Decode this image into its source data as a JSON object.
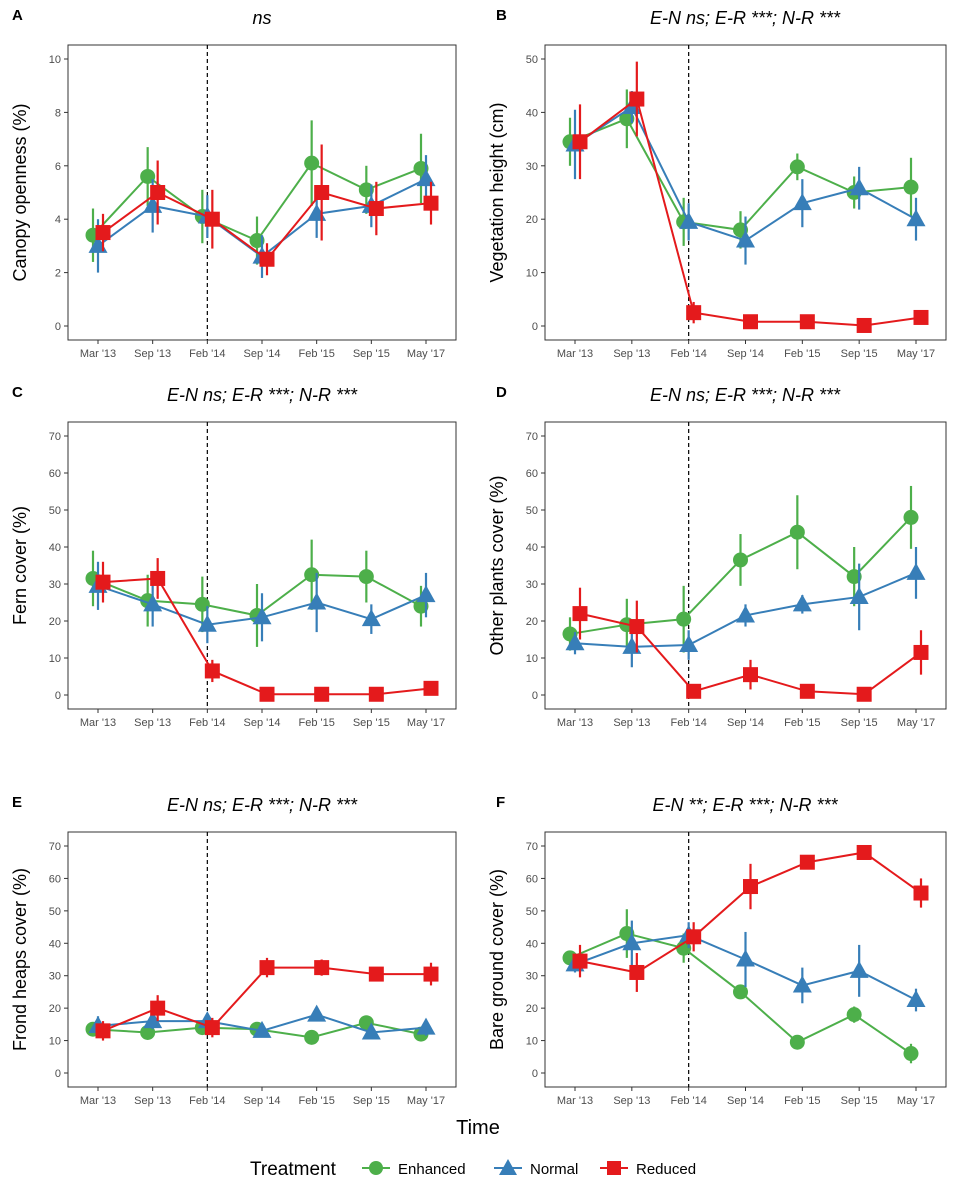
{
  "chart_data": [
    {
      "panel": "A",
      "type": "line",
      "title": "ns",
      "ylabel": "Canopy openness (%)",
      "ylim": [
        0,
        10
      ],
      "yticks": [
        0,
        2,
        4,
        6,
        8,
        10
      ],
      "categories": [
        "Mar '13",
        "Sep '13",
        "Feb '14",
        "Sep '14",
        "Feb '15",
        "Sep '15",
        "May '17"
      ],
      "series": [
        {
          "name": "Enhanced",
          "values": [
            3.4,
            5.6,
            4.1,
            3.2,
            6.1,
            5.1,
            5.9
          ],
          "err": [
            1.0,
            1.1,
            1.0,
            0.9,
            1.6,
            0.9,
            1.3
          ]
        },
        {
          "name": "Normal",
          "values": [
            3.0,
            4.5,
            4.1,
            2.6,
            4.2,
            4.5,
            5.5
          ],
          "err": [
            1.0,
            1.0,
            0.8,
            0.8,
            0.9,
            0.8,
            0.9
          ]
        },
        {
          "name": "Reduced",
          "values": [
            3.5,
            5.0,
            4.0,
            2.5,
            5.0,
            4.4,
            4.6
          ],
          "err": [
            0.7,
            1.2,
            1.1,
            0.6,
            1.8,
            1.0,
            0.8
          ]
        }
      ]
    },
    {
      "panel": "B",
      "type": "line",
      "title": "E-N ns; E-R ***; N-R ***",
      "ylabel": "Vegetation height (cm)",
      "ylim": [
        0,
        50
      ],
      "yticks": [
        0,
        10,
        20,
        30,
        40,
        50
      ],
      "categories": [
        "Mar '13",
        "Sep '13",
        "Feb '14",
        "Sep '14",
        "Feb '15",
        "Sep '15",
        "May '17"
      ],
      "series": [
        {
          "name": "Enhanced",
          "values": [
            34.5,
            38.8,
            19.5,
            18.0,
            29.8,
            25.0,
            26.0
          ],
          "err": [
            4.5,
            5.5,
            4.5,
            3.5,
            2.5,
            3.0,
            5.5
          ]
        },
        {
          "name": "Normal",
          "values": [
            34.0,
            41.0,
            19.5,
            16.0,
            23.0,
            25.8,
            20.0
          ],
          "err": [
            6.5,
            3.0,
            3.5,
            4.5,
            4.5,
            4.0,
            4.0
          ]
        },
        {
          "name": "Reduced",
          "values": [
            34.5,
            42.5,
            2.5,
            0.8,
            0.8,
            0.1,
            1.6
          ],
          "err": [
            7.0,
            7.0,
            2.0,
            0.7,
            0.6,
            0.3,
            1.0
          ]
        }
      ]
    },
    {
      "panel": "C",
      "type": "line",
      "title": "E-N ns; E-R ***; N-R ***",
      "ylabel": "Fern cover (%)",
      "ylim": [
        0,
        70
      ],
      "yticks": [
        0,
        10,
        20,
        30,
        40,
        50,
        60,
        70
      ],
      "categories": [
        "Mar '13",
        "Sep '13",
        "Feb '14",
        "Sep '14",
        "Feb '15",
        "Sep '15",
        "May '17"
      ],
      "series": [
        {
          "name": "Enhanced",
          "values": [
            31.5,
            25.5,
            24.5,
            21.5,
            32.5,
            32.0,
            24.0
          ],
          "err": [
            7.5,
            7.0,
            7.5,
            8.5,
            9.5,
            7.0,
            5.5
          ]
        },
        {
          "name": "Normal",
          "values": [
            29.5,
            24.5,
            19.0,
            21.0,
            25.0,
            20.5,
            27.0
          ],
          "err": [
            6.5,
            6.0,
            5.0,
            6.5,
            8.0,
            4.0,
            6.0
          ]
        },
        {
          "name": "Reduced",
          "values": [
            30.5,
            31.5,
            6.5,
            0.2,
            0.2,
            0.2,
            1.8
          ],
          "err": [
            5.5,
            5.5,
            3.0,
            0.5,
            0.5,
            0.5,
            1.0
          ]
        }
      ]
    },
    {
      "panel": "D",
      "type": "line",
      "title": "E-N ns; E-R ***; N-R ***",
      "ylabel": "Other plants cover (%)",
      "ylim": [
        0,
        70
      ],
      "yticks": [
        0,
        10,
        20,
        30,
        40,
        50,
        60,
        70
      ],
      "categories": [
        "Mar '13",
        "Sep '13",
        "Feb '14",
        "Sep '14",
        "Feb '15",
        "Sep '15",
        "May '17"
      ],
      "series": [
        {
          "name": "Enhanced",
          "values": [
            16.5,
            19.0,
            20.5,
            36.5,
            44.0,
            32.0,
            48.0
          ],
          "err": [
            4.5,
            7.0,
            9.0,
            7.0,
            10.0,
            8.0,
            8.5
          ]
        },
        {
          "name": "Normal",
          "values": [
            14.0,
            13.0,
            13.5,
            21.5,
            24.5,
            26.5,
            33.0
          ],
          "err": [
            3.0,
            5.5,
            4.0,
            3.0,
            2.5,
            9.0,
            7.0
          ]
        },
        {
          "name": "Reduced",
          "values": [
            22.0,
            18.5,
            1.0,
            5.5,
            1.0,
            0.2,
            11.5
          ],
          "err": [
            7.0,
            7.0,
            1.0,
            4.0,
            1.0,
            0.5,
            6.0
          ]
        }
      ]
    },
    {
      "panel": "E",
      "type": "line",
      "title": "E-N ns; E-R ***; N-R ***",
      "ylabel": "Frond heaps cover (%)",
      "ylim": [
        0,
        70
      ],
      "yticks": [
        0,
        10,
        20,
        30,
        40,
        50,
        60,
        70
      ],
      "categories": [
        "Mar '13",
        "Sep '13",
        "Feb '14",
        "Sep '14",
        "Feb '15",
        "Sep '15",
        "May '17"
      ],
      "series": [
        {
          "name": "Enhanced",
          "values": [
            13.5,
            12.5,
            14.0,
            13.5,
            11.0,
            15.5,
            12.0
          ],
          "err": [
            2.0,
            2.0,
            2.0,
            1.5,
            1.0,
            1.0,
            1.5
          ]
        },
        {
          "name": "Normal",
          "values": [
            14.5,
            16.0,
            16.0,
            13.0,
            18.0,
            12.5,
            14.0
          ],
          "err": [
            3.0,
            2.5,
            2.5,
            2.0,
            2.0,
            1.5,
            2.5
          ]
        },
        {
          "name": "Reduced",
          "values": [
            13.0,
            20.0,
            14.0,
            32.5,
            32.5,
            30.5,
            30.5
          ],
          "err": [
            3.0,
            4.0,
            3.0,
            3.0,
            2.5,
            1.5,
            3.5
          ]
        }
      ]
    },
    {
      "panel": "F",
      "type": "line",
      "title": "E-N **; E-R ***; N-R ***",
      "ylabel": "Bare ground cover (%)",
      "ylim": [
        0,
        70
      ],
      "yticks": [
        0,
        10,
        20,
        30,
        40,
        50,
        60,
        70
      ],
      "categories": [
        "Mar '13",
        "Sep '13",
        "Feb '14",
        "Sep '14",
        "Feb '15",
        "Sep '15",
        "May '17"
      ],
      "series": [
        {
          "name": "Enhanced",
          "values": [
            35.5,
            43.0,
            38.5,
            25.0,
            9.5,
            18.0,
            6.0
          ],
          "err": [
            2.0,
            7.5,
            4.5,
            1.5,
            1.0,
            2.5,
            3.0
          ]
        },
        {
          "name": "Normal",
          "values": [
            33.5,
            40.0,
            42.5,
            35.0,
            27.0,
            31.5,
            22.5
          ],
          "err": [
            2.5,
            7.0,
            4.0,
            8.5,
            5.5,
            8.0,
            3.5
          ]
        },
        {
          "name": "Reduced",
          "values": [
            34.5,
            31.0,
            42.0,
            57.5,
            65.0,
            68.0,
            55.5
          ],
          "err": [
            5.0,
            6.0,
            4.5,
            7.0,
            2.0,
            1.5,
            4.5
          ]
        }
      ]
    }
  ],
  "x_axis_title": "Time",
  "legend": {
    "title": "Treatment",
    "items": [
      {
        "name": "Enhanced",
        "shape": "circle",
        "color": "#4daf4a"
      },
      {
        "name": "Normal",
        "shape": "triangle",
        "color": "#377eb8"
      },
      {
        "name": "Reduced",
        "shape": "square",
        "color": "#e41a1c"
      }
    ]
  },
  "colors": {
    "Enhanced": "#4daf4a",
    "Normal": "#377eb8",
    "Reduced": "#e41a1c"
  },
  "dashed_line_at": "Feb '14"
}
